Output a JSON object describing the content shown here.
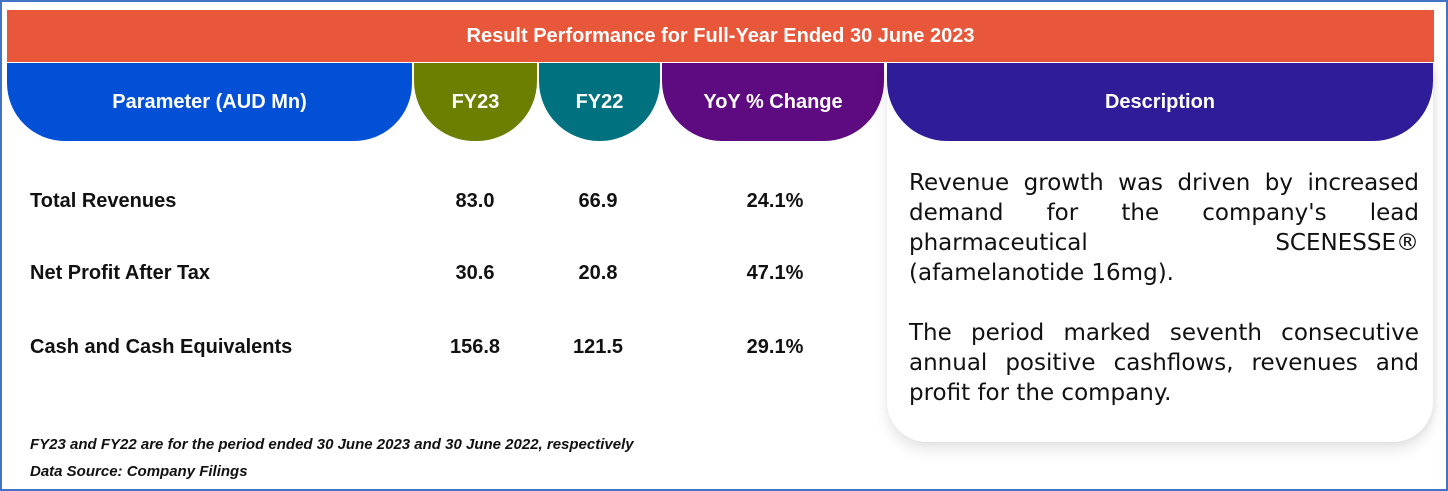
{
  "title": "Result Performance for Full-Year Ended 30 June 2023",
  "colors": {
    "banner": "#e8573a",
    "parameter_header": "#0250d6",
    "fy23_header": "#6c7f00",
    "fy22_header": "#00727f",
    "yoy_header": "#5e0a80",
    "description_header": "#2e1c99",
    "frame_border": "#4472c4"
  },
  "headers": {
    "parameter": "Parameter (AUD Mn)",
    "fy23": "FY23",
    "fy22": "FY22",
    "yoy": "YoY % Change",
    "description": "Description"
  },
  "rows": [
    {
      "parameter": "Total Revenues",
      "fy23": "83.0",
      "fy22": "66.9",
      "yoy": "24.1%"
    },
    {
      "parameter": "Net Profit After Tax",
      "fy23": "30.6",
      "fy22": "20.8",
      "yoy": "47.1%"
    },
    {
      "parameter": "Cash and Cash Equivalents",
      "fy23": "156.8",
      "fy22": "121.5",
      "yoy": "29.1%"
    }
  ],
  "description": {
    "paragraphs": [
      "Revenue growth was driven by increased demand for the company's lead pharmaceutical SCENESSE® (afamelanotide 16mg).",
      "The period marked seventh consecutive annual positive cashflows, revenues and profit for the company."
    ]
  },
  "footnotes": {
    "period_note": "FY23 and FY22 are for the period ended 30 June 2023 and 30 June 2022, respectively",
    "source": "Data Source: Company Filings"
  }
}
